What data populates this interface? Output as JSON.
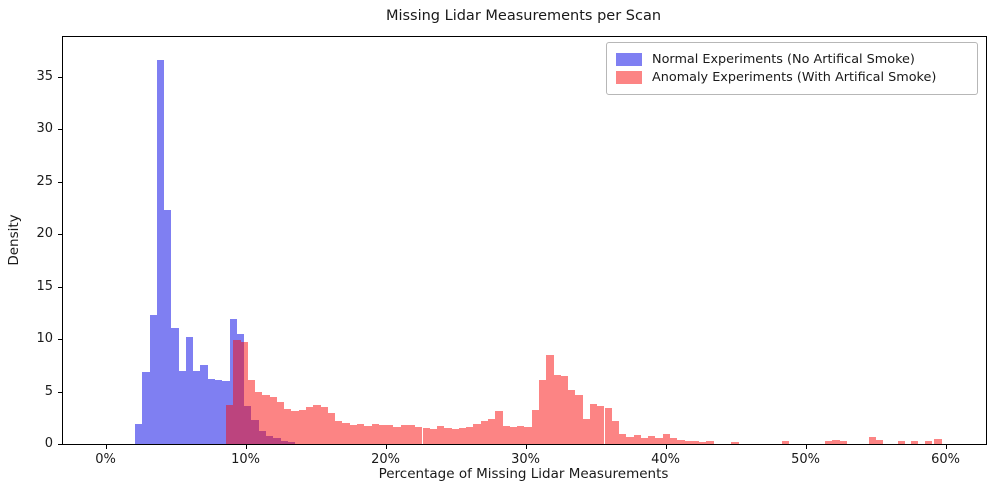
{
  "title": "Missing Lidar Measurements per Scan",
  "x_axis_label": "Percentage of Missing Lidar Measurements",
  "y_axis_label": "Density",
  "legend": {
    "items": [
      {
        "label": "Normal Experiments (No Artifical Smoke)",
        "color": "rgba(0,0,230,0.5)"
      },
      {
        "label": "Anomaly Experiments (With Artifical Smoke)",
        "color": "rgba(250,10,10,0.5)"
      }
    ]
  },
  "chart_data": {
    "type": "bar",
    "subtype": "overlaid-histogram",
    "title": "Missing Lidar Measurements per Scan",
    "xlabel": "Percentage of Missing Lidar Measurements",
    "ylabel": "Density",
    "grid": false,
    "legend_position": "upper right",
    "xlim": [
      -3.04,
      62.89
    ],
    "ylim": [
      0,
      38.78
    ],
    "x_tick_values": [
      0,
      10,
      20,
      30,
      40,
      50,
      60
    ],
    "x_tick_labels": [
      "0%",
      "10%",
      "20%",
      "30%",
      "40%",
      "50%",
      "60%"
    ],
    "y_tick_values": [
      0,
      5,
      10,
      15,
      20,
      25,
      30,
      35
    ],
    "y_tick_labels": [
      "0",
      "5",
      "10",
      "15",
      "20",
      "25",
      "30",
      "35"
    ],
    "bin_width_percent": 0.52,
    "series": [
      {
        "name": "Normal Experiments (No Artifical Smoke)",
        "color": "rgba(0,0,230,0.5)",
        "bars": [
          [
            2.1,
            1.9
          ],
          [
            2.62,
            6.9
          ],
          [
            3.14,
            12.3
          ],
          [
            3.66,
            36.6
          ],
          [
            4.18,
            22.3
          ],
          [
            4.7,
            11.1
          ],
          [
            5.22,
            7.0
          ],
          [
            5.74,
            10.2
          ],
          [
            6.26,
            7.0
          ],
          [
            6.78,
            7.5
          ],
          [
            7.3,
            6.2
          ],
          [
            7.82,
            6.1
          ],
          [
            8.34,
            6.0
          ],
          [
            8.86,
            11.9
          ],
          [
            9.38,
            10.5
          ],
          [
            9.9,
            3.6
          ],
          [
            10.42,
            2.3
          ],
          [
            10.94,
            1.2
          ],
          [
            11.46,
            0.8
          ],
          [
            11.98,
            0.55
          ],
          [
            12.5,
            0.3
          ],
          [
            13.02,
            0.15
          ]
        ]
      },
      {
        "name": "Anomaly Experiments (With Artifical Smoke)",
        "color": "rgba(250,10,10,0.5)",
        "bars": [
          [
            8.6,
            3.7
          ],
          [
            9.12,
            9.9
          ],
          [
            9.64,
            9.7
          ],
          [
            10.16,
            6.1
          ],
          [
            10.68,
            5.0
          ],
          [
            11.2,
            4.7
          ],
          [
            11.72,
            4.5
          ],
          [
            12.24,
            4.0
          ],
          [
            12.76,
            3.3
          ],
          [
            13.28,
            3.1
          ],
          [
            13.8,
            3.2
          ],
          [
            14.32,
            3.5
          ],
          [
            14.84,
            3.7
          ],
          [
            15.36,
            3.5
          ],
          [
            15.88,
            3.0
          ],
          [
            16.4,
            2.2
          ],
          [
            16.92,
            2.0
          ],
          [
            17.44,
            1.8
          ],
          [
            17.96,
            1.9
          ],
          [
            18.48,
            1.7
          ],
          [
            19.0,
            1.9
          ],
          [
            19.52,
            1.8
          ],
          [
            20.04,
            1.8
          ],
          [
            20.56,
            1.65
          ],
          [
            21.08,
            1.8
          ],
          [
            21.6,
            1.8
          ],
          [
            22.12,
            1.65
          ],
          [
            22.64,
            1.55
          ],
          [
            23.16,
            1.4
          ],
          [
            23.68,
            1.7
          ],
          [
            24.2,
            1.55
          ],
          [
            24.72,
            1.4
          ],
          [
            25.24,
            1.55
          ],
          [
            25.76,
            1.65
          ],
          [
            26.28,
            1.9
          ],
          [
            26.8,
            2.2
          ],
          [
            27.32,
            2.35
          ],
          [
            27.84,
            3.1
          ],
          [
            28.36,
            1.7
          ],
          [
            28.88,
            1.6
          ],
          [
            29.4,
            1.75
          ],
          [
            29.92,
            1.65
          ],
          [
            30.44,
            3.2
          ],
          [
            30.96,
            6.1
          ],
          [
            31.48,
            8.5
          ],
          [
            32.0,
            6.6
          ],
          [
            32.52,
            6.5
          ],
          [
            33.04,
            5.1
          ],
          [
            33.56,
            4.7
          ],
          [
            34.08,
            2.4
          ],
          [
            34.6,
            3.8
          ],
          [
            35.12,
            3.6
          ],
          [
            35.64,
            3.4
          ],
          [
            36.16,
            2.2
          ],
          [
            36.68,
            0.95
          ],
          [
            37.2,
            0.7
          ],
          [
            37.72,
            0.9
          ],
          [
            38.24,
            0.55
          ],
          [
            38.76,
            0.8
          ],
          [
            39.28,
            0.55
          ],
          [
            39.8,
            1.0
          ],
          [
            40.32,
            0.55
          ],
          [
            40.84,
            0.4
          ],
          [
            41.36,
            0.25
          ],
          [
            41.88,
            0.3
          ],
          [
            42.4,
            0.2
          ],
          [
            42.92,
            0.3
          ],
          [
            44.7,
            0.2
          ],
          [
            48.3,
            0.25
          ],
          [
            51.4,
            0.3
          ],
          [
            51.92,
            0.35
          ],
          [
            52.44,
            0.3
          ],
          [
            54.5,
            0.65
          ],
          [
            55.02,
            0.4
          ],
          [
            56.6,
            0.25
          ],
          [
            57.5,
            0.3
          ],
          [
            58.5,
            0.25
          ],
          [
            59.2,
            0.45
          ]
        ]
      }
    ]
  }
}
